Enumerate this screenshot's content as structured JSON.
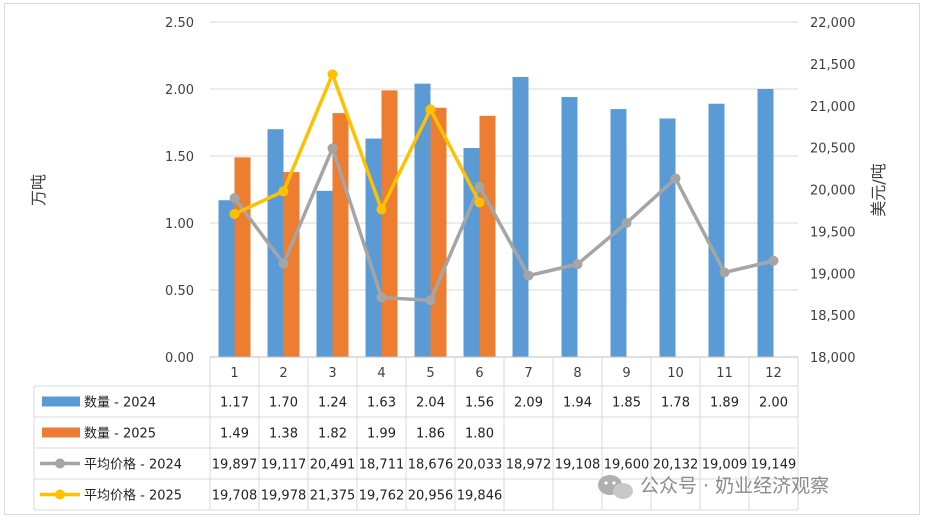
{
  "chart_data": {
    "type": "bar",
    "categories": [
      "1",
      "2",
      "3",
      "4",
      "5",
      "6",
      "7",
      "8",
      "9",
      "10",
      "11",
      "12"
    ],
    "ylabel": "万吨",
    "y2label": "美元/吨",
    "ylim": [
      0,
      2.5
    ],
    "y2lim": [
      18000,
      22000
    ],
    "yticks": [
      "0.00",
      "0.50",
      "1.00",
      "1.50",
      "2.00",
      "2.50"
    ],
    "y2ticks": [
      "18,000",
      "18,500",
      "19,000",
      "19,500",
      "20,000",
      "20,500",
      "21,000",
      "21,500",
      "22,000"
    ],
    "grid": true,
    "legend_placement": "data-table",
    "series": [
      {
        "name": "数量 - 2024",
        "type": "bar",
        "axis": "left",
        "color": "#5b9bd5",
        "values": [
          1.17,
          1.7,
          1.24,
          1.63,
          2.04,
          1.56,
          2.09,
          1.94,
          1.85,
          1.78,
          1.89,
          2.0
        ],
        "labels": [
          "1.17",
          "1.70",
          "1.24",
          "1.63",
          "2.04",
          "1.56",
          "2.09",
          "1.94",
          "1.85",
          "1.78",
          "1.89",
          "2.00"
        ]
      },
      {
        "name": "数量 - 2025",
        "type": "bar",
        "axis": "left",
        "color": "#ed7d31",
        "values": [
          1.49,
          1.38,
          1.82,
          1.99,
          1.86,
          1.8,
          null,
          null,
          null,
          null,
          null,
          null
        ],
        "labels": [
          "1.49",
          "1.38",
          "1.82",
          "1.99",
          "1.86",
          "1.80",
          "",
          "",
          "",
          "",
          "",
          ""
        ]
      },
      {
        "name": "平均价格 - 2024",
        "type": "line",
        "axis": "right",
        "color": "#a5a5a5",
        "values": [
          19897,
          19117,
          20491,
          18711,
          18676,
          20033,
          18972,
          19108,
          19600,
          20132,
          19009,
          19149
        ],
        "labels": [
          "19,897",
          "19,117",
          "20,491",
          "18,711",
          "18,676",
          "20,033",
          "18,972",
          "19,108",
          "19,600",
          "20,132",
          "19,009",
          "19,149"
        ]
      },
      {
        "name": "平均价格 - 2025",
        "type": "line",
        "axis": "right",
        "color": "#ffc000",
        "values": [
          19708,
          19978,
          21375,
          19762,
          20956,
          19846,
          null,
          null,
          null,
          null,
          null,
          null
        ],
        "labels": [
          "19,708",
          "19,978",
          "21,375",
          "19,762",
          "20,956",
          "19,846",
          "",
          "",
          "",
          "",
          "",
          ""
        ]
      }
    ]
  },
  "watermark": {
    "text": "公众号 · 奶业经济观察"
  }
}
